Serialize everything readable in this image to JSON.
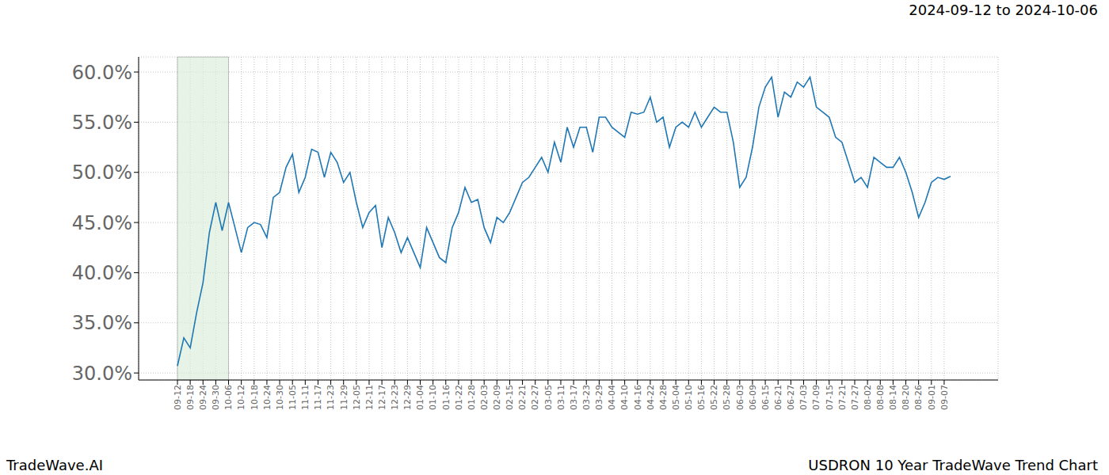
{
  "chart_data": {
    "type": "line",
    "title": "2024-09-12 to 2024-10-06",
    "caption_left": "TradeWave.AI",
    "caption_right": "USDRON 10 Year TradeWave Trend Chart",
    "categories": [
      "09-12",
      null,
      "09-18",
      null,
      "09-24",
      null,
      "09-30",
      null,
      "10-06",
      null,
      "10-12",
      null,
      "10-18",
      null,
      "10-24",
      null,
      "10-30",
      null,
      "11-05",
      null,
      "11-11",
      null,
      "11-17",
      null,
      "11-23",
      null,
      "11-29",
      null,
      "12-05",
      null,
      "12-11",
      null,
      "12-17",
      null,
      "12-23",
      null,
      "12-29",
      null,
      "01-04",
      null,
      "01-10",
      null,
      "01-16",
      null,
      "01-22",
      null,
      "01-28",
      null,
      "02-03",
      null,
      "02-09",
      null,
      "02-15",
      null,
      "02-21",
      null,
      "02-27",
      null,
      "03-05",
      null,
      "03-11",
      null,
      "03-17",
      null,
      "03-23",
      null,
      "03-29",
      null,
      "04-04",
      null,
      "04-10",
      null,
      "04-16",
      null,
      "04-22",
      null,
      "04-28",
      null,
      "05-04",
      null,
      "05-10",
      null,
      "05-16",
      null,
      "05-22",
      null,
      "05-28",
      null,
      "06-03",
      null,
      "06-09",
      null,
      "06-15",
      null,
      "06-21",
      null,
      "06-27",
      null,
      "07-03",
      null,
      "07-09",
      null,
      "07-15",
      null,
      "07-21",
      null,
      "07-27",
      null,
      "08-02",
      null,
      "08-08",
      null,
      "08-14",
      null,
      "08-20",
      null,
      "08-26",
      null,
      "09-01",
      null,
      "09-07",
      null
    ],
    "values": [
      30.7,
      33.5,
      32.5,
      36,
      39,
      44,
      47,
      44.2,
      47,
      44.5,
      42,
      44.5,
      45,
      44.8,
      43.5,
      47.5,
      48,
      50.5,
      51.8,
      48,
      49.5,
      52.3,
      52,
      49.5,
      52,
      51,
      49,
      50,
      47,
      44.5,
      46,
      46.7,
      42.5,
      45.5,
      44,
      42,
      43.5,
      42,
      40.5,
      44.5,
      43,
      41.5,
      41,
      44.5,
      46,
      48.5,
      47,
      47.3,
      44.5,
      43,
      45.5,
      45,
      46,
      47.5,
      49,
      49.5,
      50.5,
      51.5,
      50,
      53,
      51,
      54.5,
      52.5,
      54.5,
      54.5,
      52,
      55.5,
      55.5,
      54.5,
      54,
      53.5,
      56,
      55.8,
      56,
      57.5,
      55,
      55.5,
      52.5,
      54.5,
      55,
      54.5,
      56,
      54.5,
      55.5,
      56.5,
      56,
      56,
      53,
      48.5,
      49.5,
      52.5,
      56.5,
      58.5,
      59.5,
      55.5,
      58,
      57.5,
      59,
      58.5,
      59.5,
      56.5,
      56,
      55.5,
      53.5,
      53,
      51,
      49,
      49.5,
      48.5,
      51.5,
      51,
      50.5,
      50.5,
      51.5,
      50,
      48,
      45.5,
      47,
      49,
      49.5,
      49.3,
      49.6
    ],
    "color": "#1f77b4",
    "highlight": [
      "09-12",
      "10-06"
    ],
    "ylim": [
      29.3,
      61.5
    ],
    "yticks": [
      {
        "value": 30,
        "label": "30.0%"
      },
      {
        "value": 35,
        "label": "35.0%"
      },
      {
        "value": 40,
        "label": "40.0%"
      },
      {
        "value": 45,
        "label": "45.0%"
      },
      {
        "value": 50,
        "label": "50.0%"
      },
      {
        "value": 55,
        "label": "55.0%"
      },
      {
        "value": 60,
        "label": "60.0%"
      }
    ],
    "grid": true
  }
}
